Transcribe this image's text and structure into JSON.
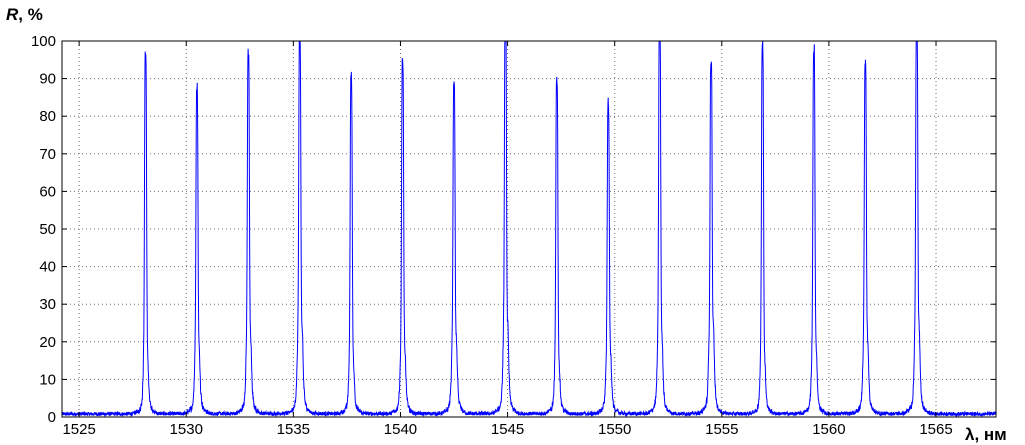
{
  "chart_data": {
    "type": "line",
    "title": "",
    "ylabel_symbol": "R",
    "ylabel_unit": ", %",
    "xlabel": "λ, нм",
    "xlim": [
      1524.2,
      1567.8
    ],
    "ylim": [
      0,
      100
    ],
    "xticks": [
      1525,
      1530,
      1535,
      1540,
      1545,
      1550,
      1555,
      1560,
      1565
    ],
    "yticks": [
      0,
      10,
      20,
      30,
      40,
      50,
      60,
      70,
      80,
      90,
      100
    ],
    "grid": true,
    "colors": {
      "line": "#0000ff",
      "grid": "#6e6e6e",
      "axis": "#000000"
    },
    "series": [
      {
        "peaks": [
          {
            "x": 1528.1,
            "y": 92
          },
          {
            "x": 1530.5,
            "y": 82
          },
          {
            "x": 1532.9,
            "y": 90
          },
          {
            "x": 1535.3,
            "y": 95
          },
          {
            "x": 1537.7,
            "y": 86
          },
          {
            "x": 1540.1,
            "y": 89
          },
          {
            "x": 1542.5,
            "y": 83
          },
          {
            "x": 1544.9,
            "y": 99.5
          },
          {
            "x": 1547.3,
            "y": 85
          },
          {
            "x": 1549.7,
            "y": 78
          },
          {
            "x": 1552.1,
            "y": 100
          },
          {
            "x": 1554.5,
            "y": 88
          },
          {
            "x": 1556.9,
            "y": 95
          },
          {
            "x": 1559.3,
            "y": 93
          },
          {
            "x": 1561.7,
            "y": 88
          },
          {
            "x": 1564.1,
            "y": 100
          }
        ],
        "baseline": 0.8
      }
    ]
  }
}
